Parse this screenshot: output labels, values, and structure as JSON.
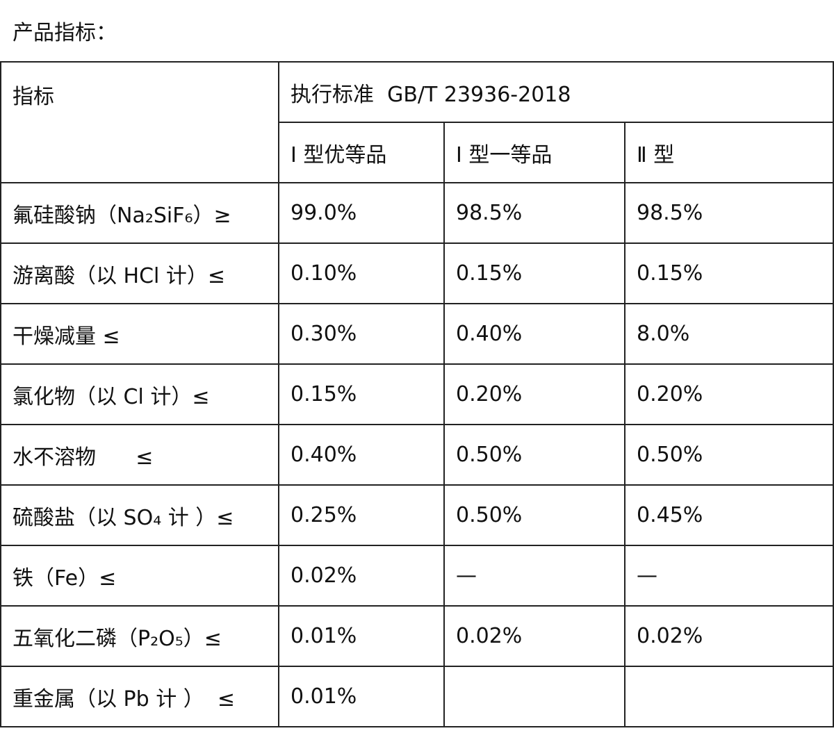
{
  "title": "产品指标：",
  "table": {
    "header": {
      "indicator": "指标",
      "standard": "执行标准  GB/T 23936-2018",
      "grades": [
        "Ⅰ 型优等品",
        "Ⅰ 型一等品",
        "Ⅱ 型"
      ]
    },
    "rows": [
      [
        "氟硅酸钠（Na₂SiF₆）≥",
        "99.0%",
        "98.5%",
        "98.5%"
      ],
      [
        "游离酸（以 HCl 计）≤",
        "0.10%",
        "0.15%",
        "0.15%"
      ],
      [
        "干燥减量 ≤",
        "0.30%",
        "0.40%",
        "8.0%"
      ],
      [
        "氯化物（以 Cl 计）≤",
        "0.15%",
        "0.20%",
        "0.20%"
      ],
      [
        "水不溶物      ≤",
        "0.40%",
        "0.50%",
        "0.50%"
      ],
      [
        "硫酸盐（以 SO₄ 计 ）≤",
        "0.25%",
        "0.50%",
        "0.45%"
      ],
      [
        "铁（Fe）≤",
        "0.02%",
        "—",
        "—"
      ],
      [
        "五氧化二磷（P₂O₅）≤",
        "0.01%",
        "0.02%",
        "0.02%"
      ],
      [
        "重金属（以 Pb 计 ）  ≤",
        "0.01%"
      ]
    ]
  }
}
